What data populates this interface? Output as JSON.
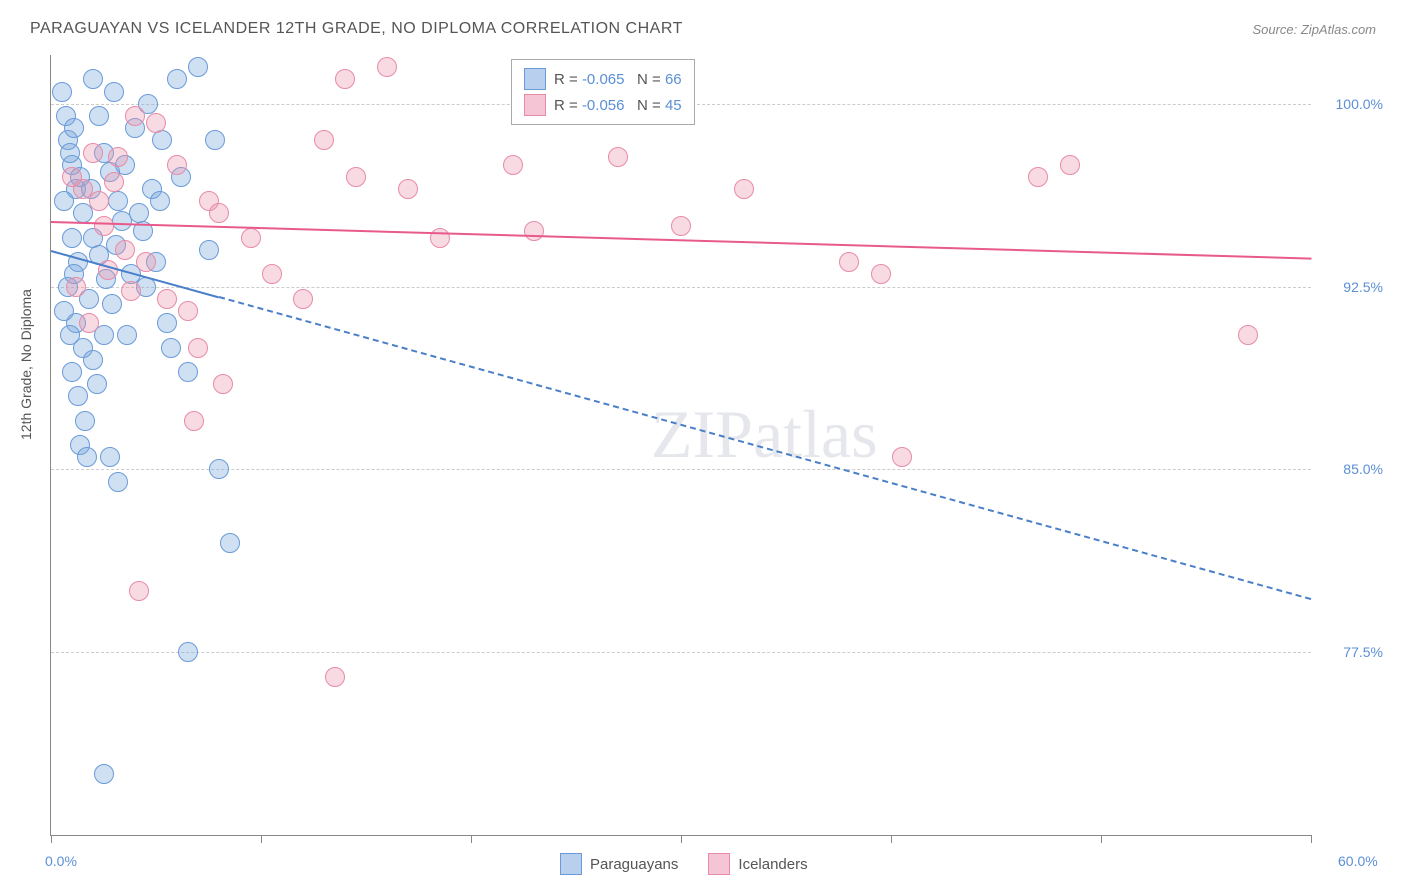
{
  "title": "PARAGUAYAN VS ICELANDER 12TH GRADE, NO DIPLOMA CORRELATION CHART",
  "source": "Source: ZipAtlas.com",
  "y_axis_label": "12th Grade, No Diploma",
  "watermark": "ZIPatlas",
  "chart": {
    "type": "scatter",
    "background_color": "#ffffff",
    "grid_color": "#cccccc",
    "axis_color": "#888888",
    "xlim": [
      0,
      60
    ],
    "ylim": [
      70,
      102
    ],
    "x_ticks": [
      0,
      10,
      20,
      30,
      40,
      50,
      60
    ],
    "x_tick_labels": {
      "0": "0.0%",
      "60": "60.0%"
    },
    "y_gridlines": [
      77.5,
      85.0,
      92.5,
      100.0
    ],
    "y_tick_labels": [
      "77.5%",
      "85.0%",
      "92.5%",
      "100.0%"
    ],
    "marker_radius": 9,
    "marker_stroke_width": 1.5,
    "title_fontsize": 16,
    "label_fontsize": 14,
    "tick_label_color": "#5b8fd6",
    "series": [
      {
        "name": "Paraguayans",
        "fill_color": "rgba(120,165,220,0.35)",
        "stroke_color": "#6a9bd8",
        "swatch_fill": "#b8d0ee",
        "swatch_stroke": "#6a9bd8",
        "R": "-0.065",
        "N": "66",
        "trend": {
          "y_start": 94.0,
          "y_end": 79.7,
          "color": "#4a7fc9",
          "width": 2,
          "solid_until_x": 8,
          "dashed": true
        },
        "points": [
          [
            0.5,
            100.5
          ],
          [
            0.7,
            99.5
          ],
          [
            0.8,
            98.5
          ],
          [
            1.0,
            97.5
          ],
          [
            1.2,
            96.5
          ],
          [
            1.5,
            95.5
          ],
          [
            1.0,
            94.5
          ],
          [
            1.3,
            93.5
          ],
          [
            0.6,
            96.0
          ],
          [
            0.9,
            98.0
          ],
          [
            1.1,
            99.0
          ],
          [
            1.4,
            97.0
          ],
          [
            2.0,
            101.0
          ],
          [
            2.3,
            99.5
          ],
          [
            2.5,
            98.0
          ],
          [
            2.8,
            97.2
          ],
          [
            3.0,
            100.5
          ],
          [
            3.2,
            96.0
          ],
          [
            3.5,
            97.5
          ],
          [
            3.8,
            93.0
          ],
          [
            4.0,
            99.0
          ],
          [
            4.2,
            95.5
          ],
          [
            4.4,
            94.8
          ],
          [
            4.6,
            100.0
          ],
          [
            4.8,
            96.5
          ],
          [
            5.0,
            93.5
          ],
          [
            5.3,
            98.5
          ],
          [
            5.5,
            91.0
          ],
          [
            5.7,
            90.0
          ],
          [
            6.0,
            101.0
          ],
          [
            6.2,
            97.0
          ],
          [
            7.0,
            101.5
          ],
          [
            6.5,
            89.0
          ],
          [
            7.5,
            94.0
          ],
          [
            7.8,
            98.5
          ],
          [
            8.0,
            85.0
          ],
          [
            8.5,
            82.0
          ],
          [
            1.2,
            91.0
          ],
          [
            1.5,
            90.0
          ],
          [
            1.8,
            92.0
          ],
          [
            2.0,
            89.5
          ],
          [
            2.2,
            88.5
          ],
          [
            2.5,
            90.5
          ],
          [
            1.0,
            89.0
          ],
          [
            1.3,
            88.0
          ],
          [
            1.6,
            87.0
          ],
          [
            0.8,
            92.5
          ],
          [
            1.1,
            93.0
          ],
          [
            0.6,
            91.5
          ],
          [
            0.9,
            90.5
          ],
          [
            1.4,
            86.0
          ],
          [
            1.7,
            85.5
          ],
          [
            6.5,
            77.5
          ],
          [
            2.5,
            72.5
          ],
          [
            2.8,
            85.5
          ],
          [
            3.2,
            84.5
          ],
          [
            2.0,
            94.5
          ],
          [
            2.3,
            93.8
          ],
          [
            2.6,
            92.8
          ],
          [
            2.9,
            91.8
          ],
          [
            3.1,
            94.2
          ],
          [
            3.4,
            95.2
          ],
          [
            3.6,
            90.5
          ],
          [
            1.9,
            96.5
          ],
          [
            5.2,
            96.0
          ],
          [
            4.5,
            92.5
          ]
        ]
      },
      {
        "name": "Icelanders",
        "fill_color": "rgba(235,150,175,0.35)",
        "stroke_color": "#e88ba8",
        "swatch_fill": "#f5c5d5",
        "swatch_stroke": "#e88ba8",
        "R": "-0.056",
        "N": "45",
        "trend": {
          "y_start": 95.2,
          "y_end": 93.7,
          "color": "#e85a8c",
          "width": 2.5,
          "solid_until_x": 60,
          "dashed": false
        },
        "points": [
          [
            1.0,
            97.0
          ],
          [
            1.5,
            96.5
          ],
          [
            2.0,
            98.0
          ],
          [
            2.5,
            95.0
          ],
          [
            3.0,
            96.8
          ],
          [
            3.5,
            94.0
          ],
          [
            4.0,
            99.5
          ],
          [
            4.5,
            93.5
          ],
          [
            5.0,
            99.2
          ],
          [
            5.5,
            92.0
          ],
          [
            6.0,
            97.5
          ],
          [
            6.5,
            91.5
          ],
          [
            7.0,
            90.0
          ],
          [
            7.5,
            96.0
          ],
          [
            8.0,
            95.5
          ],
          [
            8.2,
            88.5
          ],
          [
            9.5,
            94.5
          ],
          [
            10.5,
            93.0
          ],
          [
            12.0,
            92.0
          ],
          [
            13.0,
            98.5
          ],
          [
            14.0,
            101.0
          ],
          [
            14.5,
            97.0
          ],
          [
            16.0,
            101.5
          ],
          [
            17.0,
            96.5
          ],
          [
            18.5,
            94.5
          ],
          [
            22.0,
            97.5
          ],
          [
            23.0,
            94.8
          ],
          [
            27.0,
            97.8
          ],
          [
            30.0,
            95.0
          ],
          [
            33.0,
            96.5
          ],
          [
            39.5,
            93.0
          ],
          [
            47.0,
            97.0
          ],
          [
            48.5,
            97.5
          ],
          [
            57.0,
            90.5
          ],
          [
            4.2,
            80.0
          ],
          [
            6.8,
            87.0
          ],
          [
            3.8,
            92.3
          ],
          [
            13.5,
            76.5
          ],
          [
            40.5,
            85.5
          ],
          [
            38.0,
            93.5
          ],
          [
            1.2,
            92.5
          ],
          [
            1.8,
            91.0
          ],
          [
            2.3,
            96.0
          ],
          [
            2.7,
            93.2
          ],
          [
            3.2,
            97.8
          ]
        ]
      }
    ]
  },
  "legend_top": {
    "R_label": "R =",
    "N_label": "N =",
    "value_color": "#5b8fd6",
    "label_color": "#555555"
  },
  "legend_bottom": {
    "items": [
      "Paraguayans",
      "Icelanders"
    ]
  }
}
